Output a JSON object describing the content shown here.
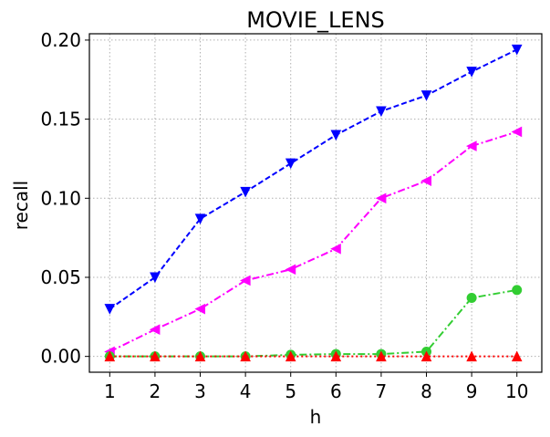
{
  "chart_data": {
    "type": "line",
    "title": "MOVIE_LENS",
    "xlabel": "h",
    "ylabel": "recall",
    "x": [
      1,
      2,
      3,
      4,
      5,
      6,
      7,
      8,
      9,
      10
    ],
    "xticks": [
      "1",
      "2",
      "3",
      "4",
      "5",
      "6",
      "7",
      "8",
      "9",
      "10"
    ],
    "yticks": [
      "0.00",
      "0.05",
      "0.10",
      "0.15",
      "0.20"
    ],
    "ytick_values": [
      0.0,
      0.05,
      0.1,
      0.15,
      0.2
    ],
    "xlim": [
      0.55,
      10.55
    ],
    "ylim": [
      -0.01,
      0.204
    ],
    "grid": true,
    "series": [
      {
        "values": [
          0.03,
          0.05,
          0.087,
          0.104,
          0.122,
          0.14,
          0.155,
          0.165,
          0.18,
          0.194
        ],
        "color": "#0000ff",
        "marker": "triangle-down",
        "linestyle": "dashed"
      },
      {
        "values": [
          0.003,
          0.017,
          0.03,
          0.048,
          0.055,
          0.068,
          0.1,
          0.111,
          0.133,
          0.142
        ],
        "color": "#ff00ff",
        "marker": "triangle-left",
        "linestyle": "dashdot"
      },
      {
        "values": [
          0.0,
          0.0,
          0.0,
          0.0,
          0.001,
          0.0015,
          0.0015,
          0.003,
          0.037,
          0.042
        ],
        "color": "#32cd32",
        "marker": "circle",
        "linestyle": "dashdot"
      },
      {
        "values": [
          0.0,
          0.0,
          0.0,
          0.0,
          0.0,
          0.0,
          0.0,
          0.0,
          0.0,
          0.0
        ],
        "color": "#ff0000",
        "marker": "triangle-up",
        "linestyle": "dotted"
      }
    ]
  }
}
